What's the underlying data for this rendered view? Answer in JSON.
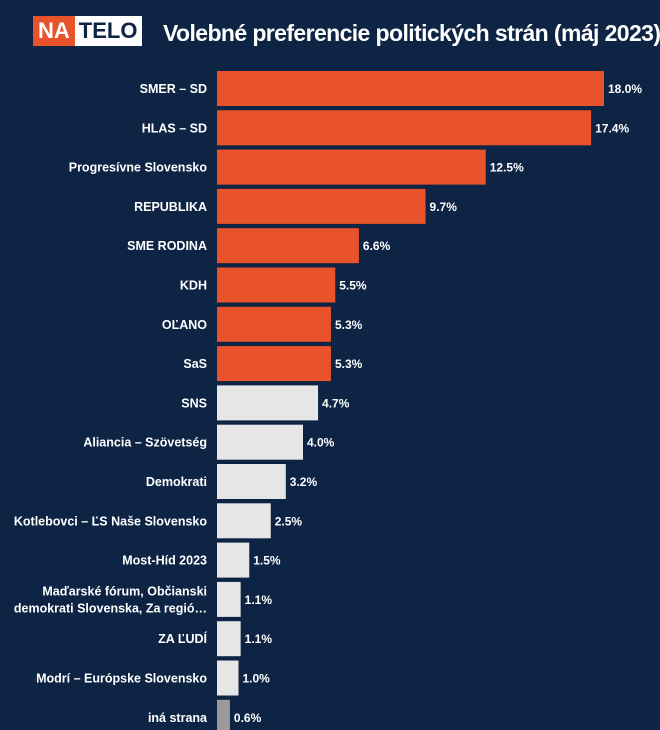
{
  "brand": {
    "logo_left": "NA",
    "logo_right": "TELO",
    "accent": "#e8532b",
    "background": "#0e2444"
  },
  "chart_data": {
    "type": "bar",
    "orientation": "horizontal",
    "title": "Volebné preferencie politických strán (máj 2023)",
    "xlabel": "",
    "ylabel": "",
    "grid": false,
    "legend": "none",
    "categories": [
      "SMER – SD",
      "HLAS – SD",
      "Progresívne Slovensko",
      "REPUBLIKA",
      "SME RODINA",
      "KDH",
      "OĽANO",
      "SaS",
      "SNS",
      "Aliancia – Szövetség",
      "Demokrati",
      "Kotlebovci – ĽS Naše Slovensko",
      "Most-Híd 2023",
      "Maďarské fórum, Občianski demokrati Slovenska, Za regió…",
      "ZA ĽUDÍ",
      "Modrí – Európske Slovensko",
      "iná strana"
    ],
    "values": [
      18.0,
      17.4,
      12.5,
      9.7,
      6.6,
      5.5,
      5.3,
      5.3,
      4.7,
      4.0,
      3.2,
      2.5,
      1.5,
      1.1,
      1.1,
      1.0,
      0.6
    ],
    "value_labels": [
      "18.0%",
      "17.4%",
      "12.5%",
      "9.7%",
      "6.6%",
      "5.5%",
      "5.3%",
      "5.3%",
      "4.7%",
      "4.0%",
      "3.2%",
      "2.5%",
      "1.5%",
      "1.1%",
      "1.1%",
      "1.0%",
      "0.6%"
    ],
    "bar_colors": [
      "#e8532b",
      "#e8532b",
      "#e8532b",
      "#e8532b",
      "#e8532b",
      "#e8532b",
      "#e8532b",
      "#e8532b",
      "#e6e6e6",
      "#e6e6e6",
      "#e6e6e6",
      "#e6e6e6",
      "#e6e6e6",
      "#e6e6e6",
      "#e6e6e6",
      "#e6e6e6",
      "#9a9a9a"
    ],
    "xlim": [
      0,
      18.0
    ]
  }
}
